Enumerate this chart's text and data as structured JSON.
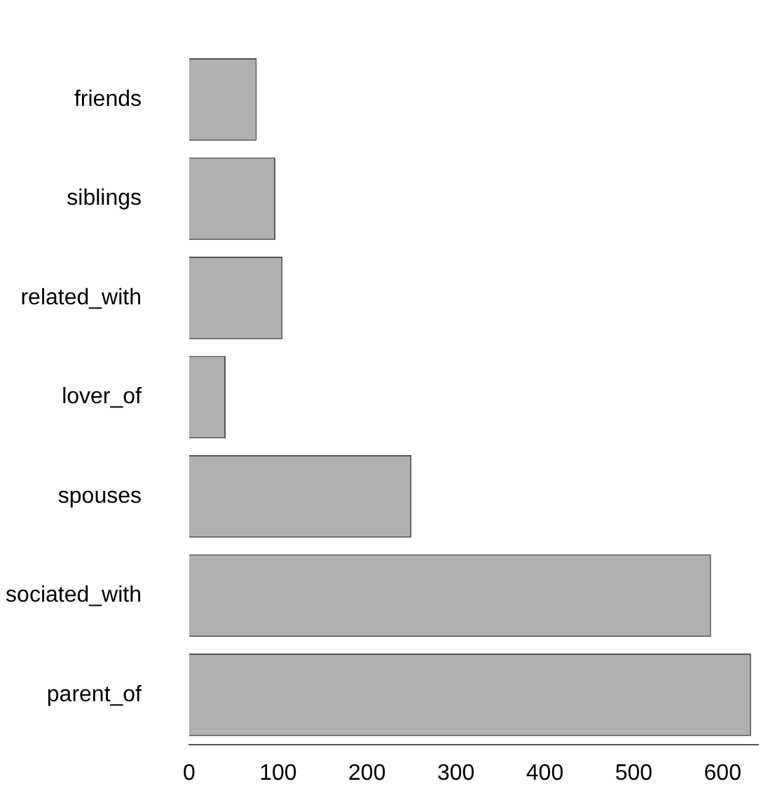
{
  "chart_data": {
    "type": "bar",
    "orientation": "horizontal",
    "categories": [
      "friends",
      "siblings",
      "related_with",
      "lover_of",
      "spouses",
      "sociated_with",
      "parent_of"
    ],
    "values": [
      76,
      97,
      105,
      41,
      250,
      587,
      632
    ],
    "color": "#b0b0b0",
    "xlim": [
      0,
      640
    ],
    "xticks": [
      0,
      100,
      200,
      300,
      400,
      500,
      600
    ],
    "grid": false,
    "legend": false
  }
}
